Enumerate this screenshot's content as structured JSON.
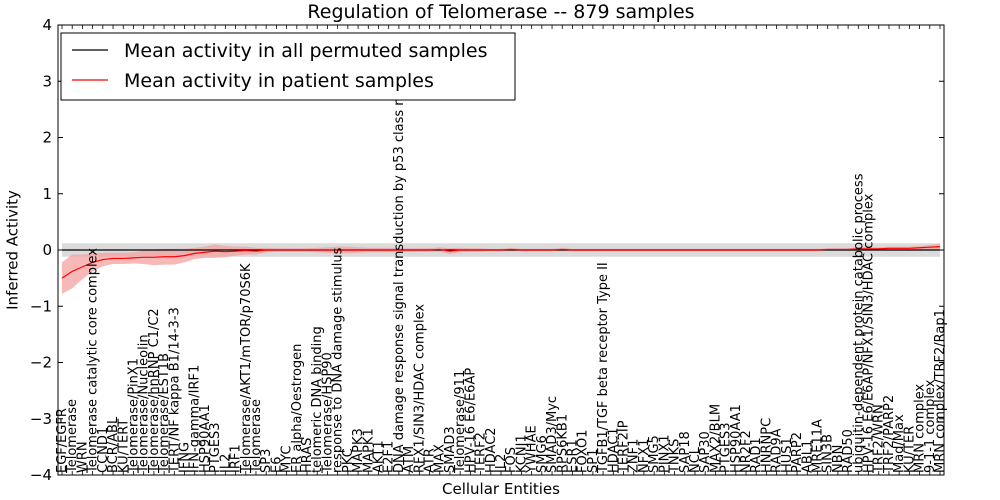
{
  "chart_data": {
    "type": "line",
    "title": "Regulation of Telomerase -- 879 samples",
    "xlabel": "Cellular Entities",
    "ylabel": "Inferred Activity",
    "ylim": [
      -4,
      4
    ],
    "yticks": [
      -4,
      -3,
      -2,
      -1,
      0,
      1,
      2,
      3,
      4
    ],
    "ytick_labels": [
      "−4",
      "−3",
      "−2",
      "−1",
      "0",
      "1",
      "2",
      "3",
      "4"
    ],
    "legend": {
      "position": "top-left",
      "entries": [
        {
          "label": "Mean activity in all permuted samples",
          "color": "#000000"
        },
        {
          "label": "Mean activity in patient samples",
          "color": "#ff0000"
        }
      ]
    },
    "zero_line": {
      "y": 0,
      "style": "dotted"
    },
    "entities": [
      "EGF/EGFR",
      "Telomerase",
      "WRN",
      "Telomerase catalytic core complex",
      "CCND1",
      "BCR/ABL",
      "KU/TERT",
      "Telomerase/PinX1",
      "Telomerase/Nucleolin",
      "Telomerase/hnRNP C1/C2",
      "Telomerase/EST1B",
      "TERT/NF kappa B1/14-3-3",
      "IFNG",
      "IFN-gamma/IRF1",
      "HSP90AA1",
      "PTGES3",
      "IL2",
      "IRF1",
      "Telomerase/AKT1/mTOR/p70S6K",
      "Telomerase",
      "SP3",
      "E6",
      "MYC",
      "ER alpha/Oestrogen",
      "HRAS",
      "telomeric DNA binding",
      "Telomerase/HSP90",
      "response to DNA damage stimulus",
      "PKC",
      "MAPK3",
      "MAPK1",
      "AKT1",
      "E2F1",
      "DNA damage response signal transduction by p53 class mediator",
      "ATM",
      "RFX1/SIN3/HDAC complex",
      "ATR",
      "MAX",
      "SMAD3",
      "Telomerase/911",
      "HPV-16 E6/E6AP",
      "TERF2",
      "HDAC2",
      "IL2",
      "FOS",
      "KCNJ1",
      "YWHAE",
      "SMG6",
      "SMAD3/Myc",
      "RPS6KB1",
      "ESR1",
      "FOXO1",
      "SP1",
      "TGFB1/TGF beta receptor Type II",
      "HDAC1",
      "TERF2IP",
      "ZNF1",
      "NFX1",
      "SMG5",
      "PINX1",
      "TNKS",
      "SAP18",
      "NCL",
      "SAP30",
      "MAX2/BLM",
      "PTGES3",
      "HSP90AA1",
      "NR2F2",
      "RAD1",
      "HNRNPC",
      "RAD9A",
      "HUS1",
      "PARP2",
      "ABL1",
      "MRE11A",
      "SIN3B",
      "NBN",
      "RAD50",
      "ubiquitin-dependent protein catabolic process",
      "HPV-16 E6/E6AP/NFX1/SIN3/HDAC complex",
      "TRF2/WRN",
      "TRF2/PARP2",
      "Mad/Max",
      "KU/TER",
      "MRN complex",
      "9-1-1 complex",
      "MRN complex/TRF2/Rap1"
    ],
    "series": [
      {
        "name": "Mean activity in all permuted samples",
        "color": "#000000",
        "band_color": "#c8c8c8",
        "values": [
          0.0,
          0.0,
          0.0,
          0.0,
          0.0,
          0.0,
          0.0,
          0.0,
          0.0,
          0.0,
          0.0,
          0.0,
          0.0,
          0.0,
          0.0,
          0.0,
          0.0,
          0.0,
          0.0,
          0.0,
          0.0,
          0.0,
          0.0,
          0.0,
          0.0,
          0.0,
          0.0,
          0.0,
          0.0,
          0.0,
          0.0,
          0.0,
          0.0,
          0.0,
          0.0,
          0.0,
          0.0,
          0.0,
          0.0,
          0.0,
          0.0,
          0.0,
          0.0,
          0.0,
          0.0,
          0.0,
          0.0,
          0.0,
          0.0,
          0.0,
          0.0,
          0.0,
          0.0,
          0.0,
          0.0,
          0.0,
          0.0,
          0.0,
          0.0,
          0.0,
          0.0,
          0.0,
          0.0,
          0.0,
          0.0,
          0.0,
          0.0,
          0.0,
          0.0,
          0.0,
          0.0,
          0.0,
          0.0,
          0.0,
          0.0,
          0.0,
          0.0,
          0.0,
          0.0,
          0.0,
          0.0,
          0.0,
          0.0,
          0.0,
          0.0,
          0.0,
          0.0
        ],
        "spread": [
          0.12,
          0.12,
          0.12,
          0.12,
          0.12,
          0.12,
          0.12,
          0.12,
          0.12,
          0.12,
          0.12,
          0.12,
          0.12,
          0.12,
          0.12,
          0.12,
          0.12,
          0.12,
          0.12,
          0.12,
          0.12,
          0.12,
          0.12,
          0.12,
          0.12,
          0.12,
          0.12,
          0.12,
          0.12,
          0.12,
          0.12,
          0.12,
          0.12,
          0.12,
          0.12,
          0.12,
          0.12,
          0.12,
          0.12,
          0.12,
          0.12,
          0.12,
          0.12,
          0.12,
          0.12,
          0.12,
          0.12,
          0.12,
          0.12,
          0.12,
          0.12,
          0.12,
          0.12,
          0.12,
          0.12,
          0.12,
          0.12,
          0.12,
          0.12,
          0.12,
          0.12,
          0.12,
          0.12,
          0.12,
          0.12,
          0.12,
          0.12,
          0.12,
          0.12,
          0.12,
          0.12,
          0.12,
          0.12,
          0.12,
          0.12,
          0.12,
          0.12,
          0.12,
          0.12,
          0.12,
          0.12,
          0.12,
          0.12,
          0.12,
          0.12,
          0.12,
          0.12
        ]
      },
      {
        "name": "Mean activity in patient samples",
        "color": "#ff0000",
        "band_color": "#f4a0a0",
        "values": [
          -0.5,
          -0.38,
          -0.3,
          -0.22,
          -0.17,
          -0.15,
          -0.15,
          -0.14,
          -0.13,
          -0.13,
          -0.12,
          -0.12,
          -0.1,
          -0.06,
          -0.04,
          -0.02,
          -0.03,
          -0.02,
          -0.01,
          -0.02,
          0.0,
          0.0,
          0.0,
          0.0,
          0.0,
          0.0,
          0.0,
          0.0,
          0.0,
          0.0,
          0.0,
          0.0,
          0.0,
          0.0,
          0.0,
          0.0,
          0.0,
          0.01,
          -0.02,
          0.0,
          0.0,
          0.0,
          0.0,
          0.0,
          0.01,
          0.0,
          0.0,
          0.0,
          0.0,
          0.01,
          0.0,
          0.0,
          0.0,
          0.0,
          0.0,
          0.0,
          0.0,
          0.0,
          0.0,
          0.0,
          0.0,
          0.0,
          0.0,
          0.0,
          0.0,
          0.0,
          0.0,
          0.0,
          0.0,
          0.0,
          0.0,
          0.0,
          0.0,
          0.0,
          0.0,
          0.01,
          0.01,
          0.01,
          0.02,
          0.02,
          0.02,
          0.03,
          0.03,
          0.03,
          0.04,
          0.05,
          0.06
        ],
        "spread": [
          0.28,
          0.3,
          0.22,
          0.16,
          0.12,
          0.1,
          0.1,
          0.1,
          0.12,
          0.14,
          0.14,
          0.14,
          0.12,
          0.1,
          0.1,
          0.12,
          0.1,
          0.08,
          0.07,
          0.06,
          0.04,
          0.03,
          0.03,
          0.03,
          0.03,
          0.04,
          0.05,
          0.06,
          0.06,
          0.05,
          0.04,
          0.04,
          0.04,
          0.03,
          0.03,
          0.03,
          0.03,
          0.04,
          0.05,
          0.04,
          0.03,
          0.03,
          0.02,
          0.02,
          0.03,
          0.02,
          0.02,
          0.02,
          0.02,
          0.03,
          0.02,
          0.02,
          0.02,
          0.02,
          0.02,
          0.02,
          0.02,
          0.02,
          0.02,
          0.02,
          0.02,
          0.02,
          0.02,
          0.02,
          0.02,
          0.02,
          0.02,
          0.02,
          0.02,
          0.02,
          0.02,
          0.02,
          0.02,
          0.02,
          0.02,
          0.02,
          0.02,
          0.02,
          0.03,
          0.03,
          0.03,
          0.03,
          0.03,
          0.03,
          0.03,
          0.04,
          0.05
        ]
      }
    ]
  }
}
